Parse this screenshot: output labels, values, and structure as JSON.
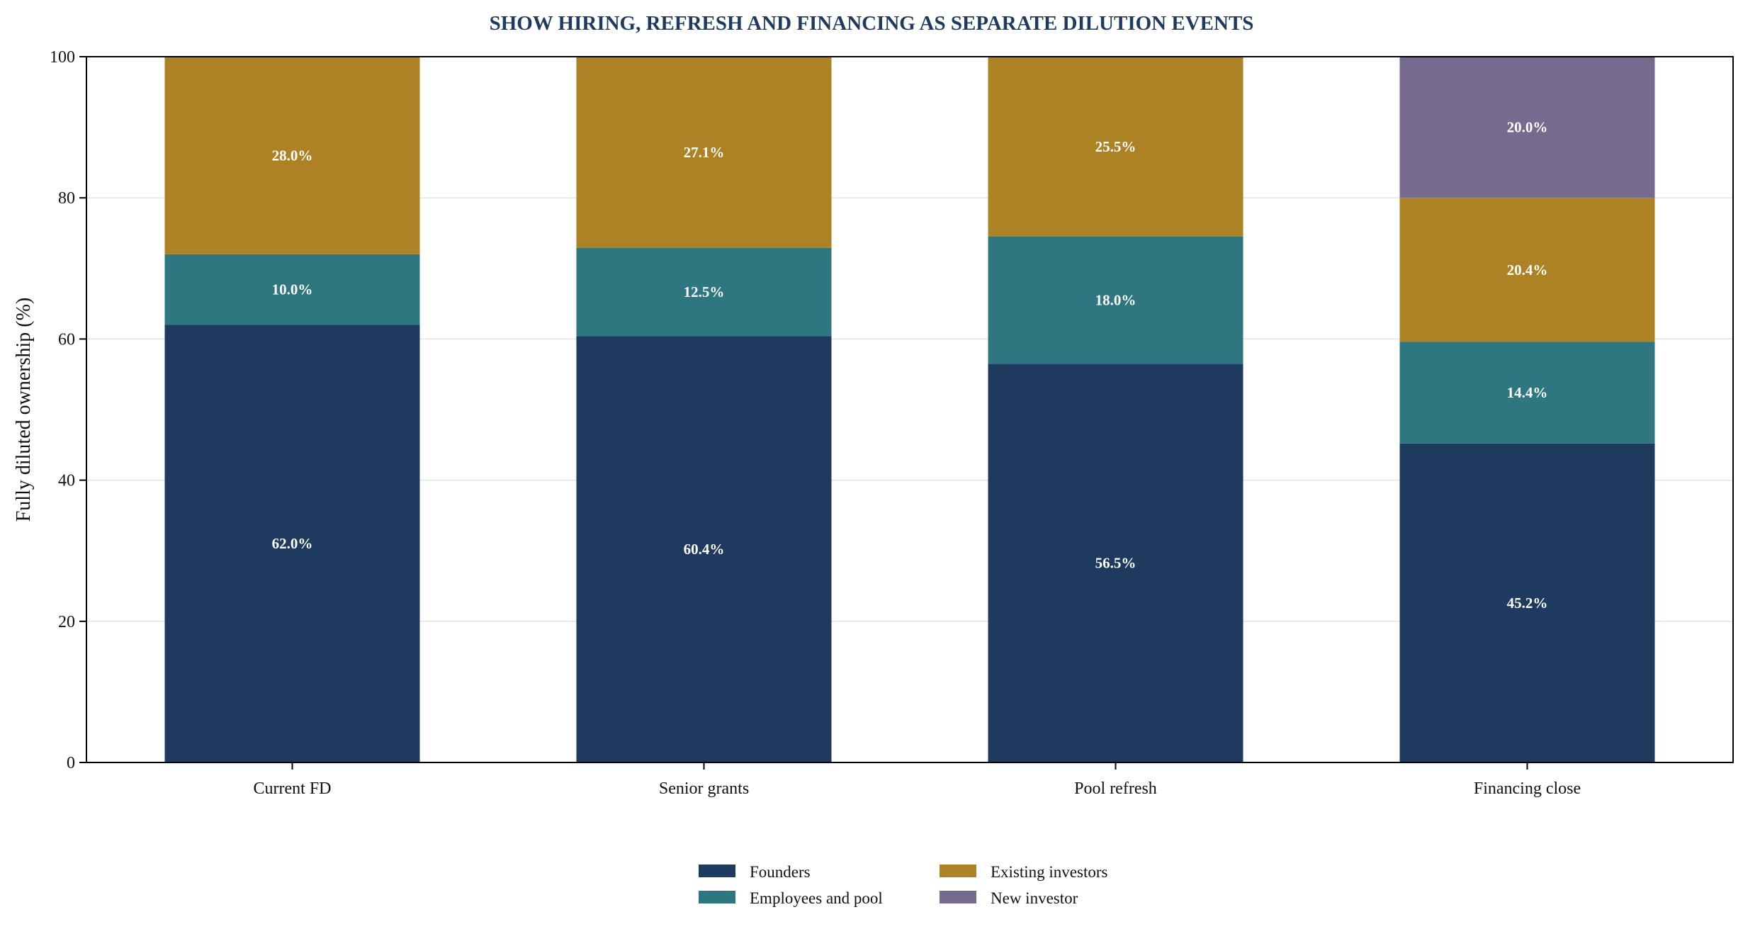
{
  "chart_data": {
    "type": "bar",
    "stacked": true,
    "title": "SHOW HIRING, REFRESH AND FINANCING AS SEPARATE DILUTION EVENTS",
    "xlabel": "",
    "ylabel": "Fully diluted ownership (%)",
    "ylim": [
      0,
      100
    ],
    "yticks": [
      0,
      20,
      40,
      60,
      80,
      100
    ],
    "grid": "horizontal",
    "legend_position": "bottom-center",
    "categories": [
      "Current FD",
      "Senior grants",
      "Pool refresh",
      "Financing close"
    ],
    "series": [
      {
        "name": "Founders",
        "color": "#1f3a5f",
        "values": [
          62.0,
          60.4,
          56.5,
          45.2
        ],
        "labels": [
          "62.0%",
          "60.4%",
          "56.5%",
          "45.2%"
        ]
      },
      {
        "name": "Employees and pool",
        "color": "#2e7780",
        "values": [
          10.0,
          12.5,
          18.0,
          14.4
        ],
        "labels": [
          "10.0%",
          "12.5%",
          "18.0%",
          "14.4%"
        ]
      },
      {
        "name": "Existing investors",
        "color": "#ad8225",
        "values": [
          28.0,
          27.1,
          25.5,
          20.4
        ],
        "labels": [
          "28.0%",
          "27.1%",
          "25.5%",
          "20.4%"
        ]
      },
      {
        "name": "New investor",
        "color": "#766a8f",
        "values": [
          0,
          0,
          0,
          20.0
        ],
        "labels": [
          "",
          "",
          "",
          "20.0%"
        ]
      }
    ]
  }
}
